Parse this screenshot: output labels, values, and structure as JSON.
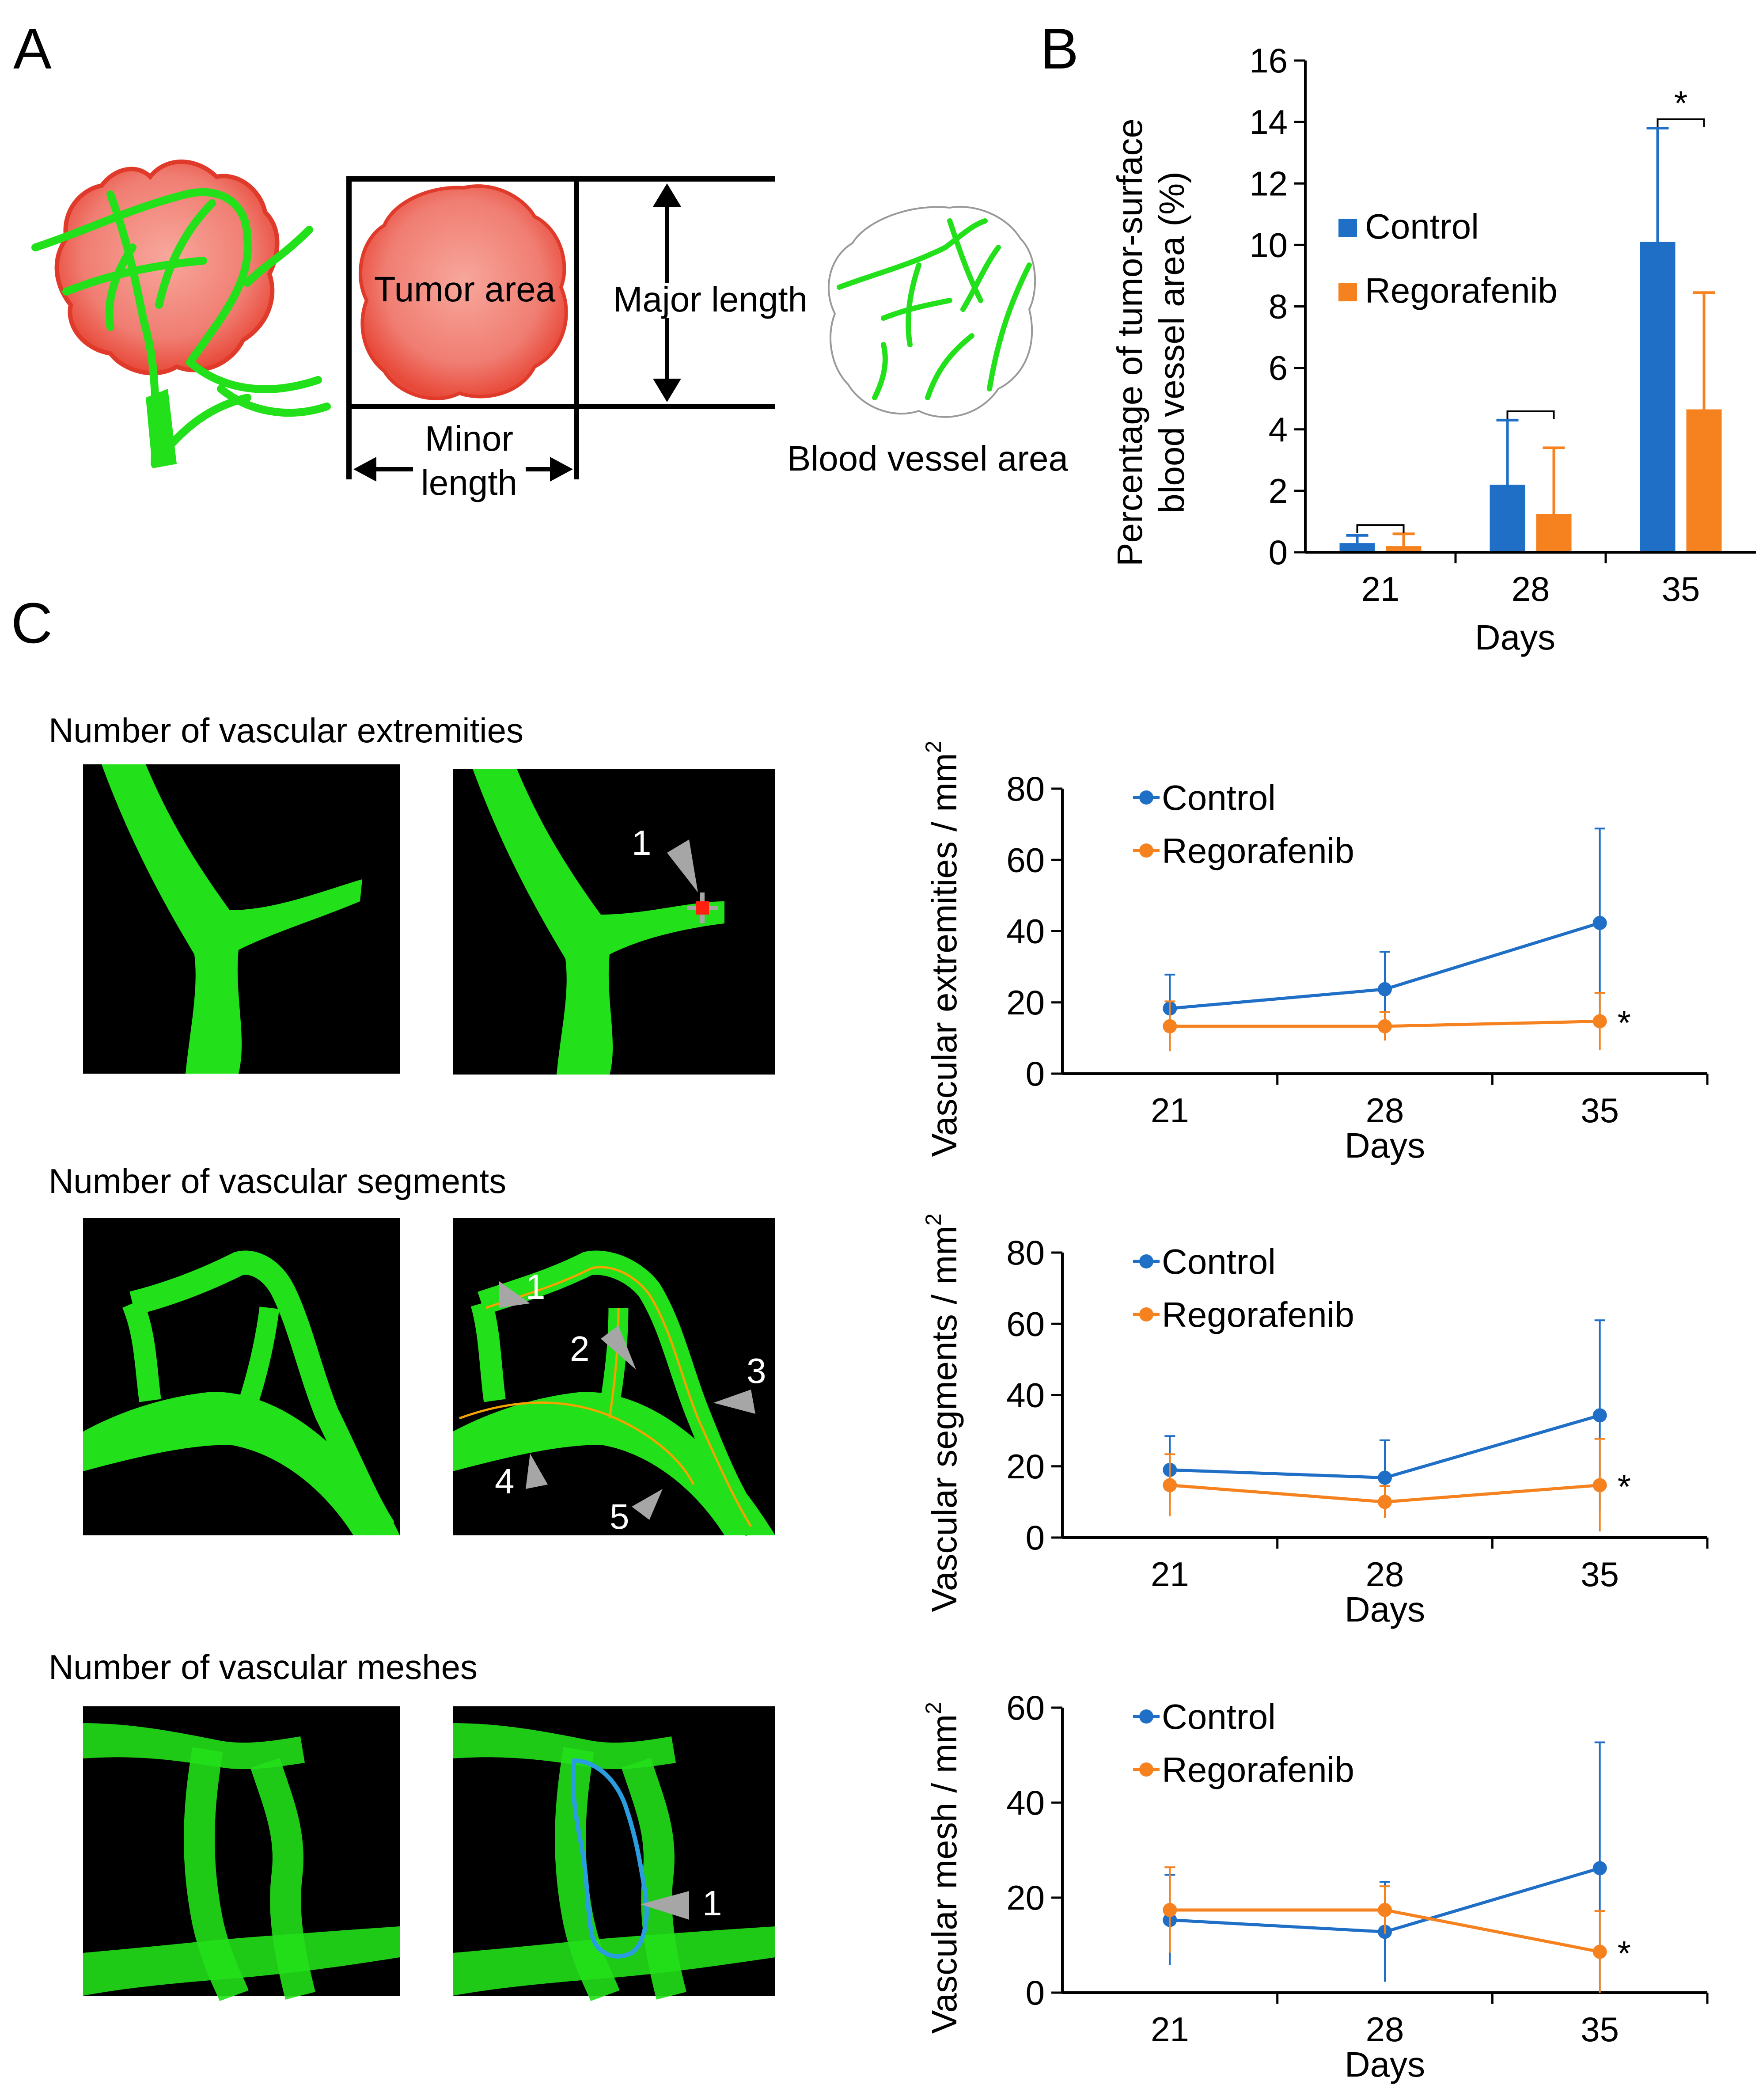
{
  "panels": {
    "a": "A",
    "b": "B",
    "c": "C"
  },
  "schematic": {
    "tumor_area": "Tumor area",
    "major_length": "Major length",
    "minor_length_line1": "Minor",
    "minor_length_line2": "length",
    "blood_vessel_area": "Blood vessel area"
  },
  "micrographs": {
    "extremities_title": "Number of vascular extremities",
    "segments_title": "Number of vascular segments",
    "meshes_title": "Number of vascular meshes",
    "extremity_markers": [
      "1"
    ],
    "segment_markers": [
      "1",
      "2",
      "3",
      "4",
      "5"
    ],
    "mesh_markers": [
      "1"
    ]
  },
  "colors": {
    "control": "#1f6fc7",
    "regorafenib": "#f5821f",
    "vessel": "#22e01a",
    "tumor": "#f07d72",
    "mesh_outline": "#2a9de0",
    "arrow_gray": "#a6a6a6"
  },
  "chart_data": [
    {
      "id": "B",
      "type": "bar",
      "ylabel_line1": "Percentage of tumor-surface",
      "ylabel_line2": "blood vessel area (%)",
      "xlabel": "Days",
      "categories": [
        "21",
        "28",
        "35"
      ],
      "ylim": [
        0,
        16
      ],
      "yticks": [
        "0",
        "2",
        "4",
        "6",
        "8",
        "10",
        "12",
        "14",
        "16"
      ],
      "series": [
        {
          "name": "Control",
          "values": [
            0.3,
            2.2,
            10.1
          ],
          "errors": [
            0.25,
            2.1,
            3.7
          ]
        },
        {
          "name": "Regorafenib",
          "values": [
            0.2,
            1.25,
            4.65
          ],
          "errors": [
            0.4,
            2.15,
            3.8
          ]
        }
      ],
      "legend": "center-left",
      "significance": [
        "",
        "",
        "*"
      ]
    },
    {
      "id": "C1",
      "type": "line",
      "ylabel": "Vascular extremities / mm",
      "ylabel_sup": "2",
      "xlabel": "Days",
      "categories": [
        "21",
        "28",
        "35"
      ],
      "ylim": [
        0,
        80
      ],
      "yticks": [
        "0",
        "20",
        "40",
        "60",
        "80"
      ],
      "series": [
        {
          "name": "Control",
          "values": [
            18.3,
            23.7,
            42.3
          ],
          "errors": [
            9.5,
            10.5,
            26.5
          ]
        },
        {
          "name": "Regorafenib",
          "values": [
            13.3,
            13.3,
            14.7
          ],
          "errors": [
            7.0,
            4.0,
            8.0
          ]
        }
      ],
      "legend": "top-left",
      "annotation": "*"
    },
    {
      "id": "C2",
      "type": "line",
      "ylabel": "Vascular segments / mm",
      "ylabel_sup": "2",
      "xlabel": "Days",
      "categories": [
        "21",
        "28",
        "35"
      ],
      "ylim": [
        0,
        80
      ],
      "yticks": [
        "0",
        "20",
        "40",
        "60",
        "80"
      ],
      "series": [
        {
          "name": "Control",
          "values": [
            19.0,
            16.8,
            34.3
          ],
          "errors": [
            9.5,
            10.5,
            26.7
          ]
        },
        {
          "name": "Regorafenib",
          "values": [
            14.7,
            10.0,
            14.7
          ],
          "errors": [
            8.7,
            4.5,
            13.0
          ]
        }
      ],
      "legend": "top-left",
      "annotation": "*"
    },
    {
      "id": "C3",
      "type": "line",
      "ylabel": "Vascular mesh / mm",
      "ylabel_sup": "2",
      "xlabel": "Days",
      "categories": [
        "21",
        "28",
        "35"
      ],
      "ylim": [
        0,
        60
      ],
      "yticks": [
        "0",
        "20",
        "40",
        "60"
      ],
      "series": [
        {
          "name": "Control",
          "values": [
            15.3,
            12.8,
            26.2
          ],
          "errors": [
            9.5,
            10.5,
            26.5
          ]
        },
        {
          "name": "Regorafenib",
          "values": [
            17.4,
            17.4,
            8.6
          ],
          "errors": [
            9.0,
            5.0,
            8.6
          ]
        }
      ],
      "legend": "top-left",
      "annotation": "*"
    }
  ]
}
